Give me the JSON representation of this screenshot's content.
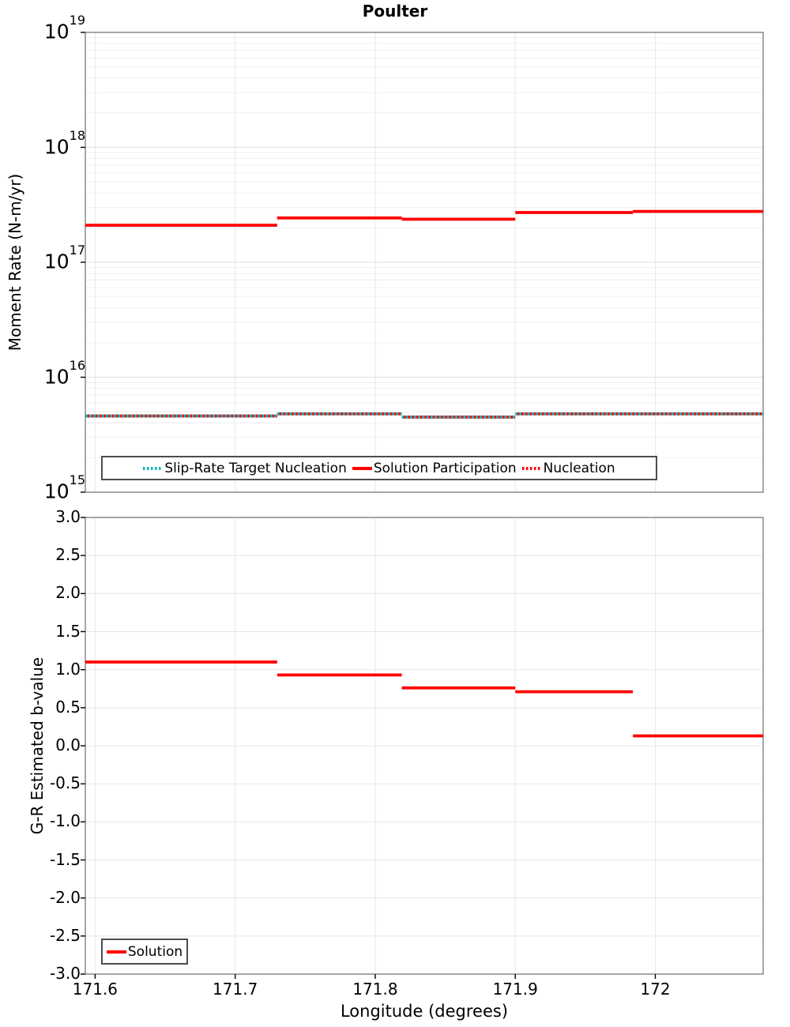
{
  "chart_data": [
    {
      "type": "line",
      "title": "Poulter",
      "ylabel": "Moment Rate (N-m/yr)",
      "xlabel": "",
      "yscale": "log",
      "ylim": [
        1000000000000000.0,
        1e+19
      ],
      "xlim": [
        171.593,
        172.077
      ],
      "grid": true,
      "legend_position": "lower left",
      "ytick_exponents": [
        19,
        18,
        17,
        16,
        15
      ],
      "xticks": [
        171.6,
        171.7,
        171.8,
        171.9,
        172.0
      ],
      "series": [
        {
          "name": "Slip-Rate Target Nucleation",
          "style": "dotted",
          "color": "#00b8be",
          "segments": [
            [
              171.593,
              171.73,
              4600000000000000.0
            ],
            [
              171.73,
              171.819,
              4800000000000000.0
            ],
            [
              171.819,
              171.9,
              4500000000000000.0
            ],
            [
              171.9,
              172.077,
              4800000000000000.0
            ]
          ]
        },
        {
          "name": "Solution Participation",
          "style": "solid",
          "color": "#ff0000",
          "segments": [
            [
              171.593,
              171.661,
              2.1e+17
            ],
            [
              171.661,
              171.73,
              2.1e+17
            ],
            [
              171.73,
              171.819,
              2.43e+17
            ],
            [
              171.819,
              171.9,
              2.37e+17
            ],
            [
              171.9,
              171.984,
              2.71e+17
            ],
            [
              171.984,
              172.077,
              2.77e+17
            ]
          ]
        },
        {
          "name": "Nucleation",
          "style": "dotted",
          "color": "#ff0000",
          "segments": [
            [
              171.593,
              171.73,
              4600000000000000.0
            ],
            [
              171.73,
              171.819,
              4800000000000000.0
            ],
            [
              171.819,
              171.9,
              4500000000000000.0
            ],
            [
              171.9,
              172.077,
              4800000000000000.0
            ]
          ]
        }
      ]
    },
    {
      "type": "line",
      "title": "",
      "ylabel": "G-R Estimated b-value",
      "xlabel": "Longitude (degrees)",
      "yscale": "linear",
      "ylim": [
        -3.0,
        3.0
      ],
      "xlim": [
        171.593,
        172.077
      ],
      "grid": true,
      "legend_position": "lower left",
      "yticks": [
        "3.0",
        "2.5",
        "2.0",
        "1.5",
        "1.0",
        "0.5",
        "0.0",
        "-0.5",
        "-1.0",
        "-1.5",
        "-2.0",
        "-2.5",
        "-3.0"
      ],
      "xticks": [
        171.6,
        171.7,
        171.8,
        171.9,
        172.0
      ],
      "xtick_labels": [
        "171.6",
        "171.7",
        "171.8",
        "171.9",
        "172"
      ],
      "series": [
        {
          "name": "Solution",
          "style": "solid",
          "color": "#ff0000",
          "segments": [
            [
              171.593,
              171.661,
              1.1
            ],
            [
              171.661,
              171.73,
              1.1
            ],
            [
              171.73,
              171.819,
              0.93
            ],
            [
              171.819,
              171.9,
              0.76
            ],
            [
              171.9,
              171.984,
              0.71
            ],
            [
              171.984,
              172.077,
              0.13
            ]
          ]
        }
      ]
    }
  ],
  "colors": {
    "solution": "#ff0000",
    "target": "#00b8be",
    "grid_minor": "#efefef",
    "grid_major": "#e2e2e2",
    "grid_vertical": "#e8e8e8",
    "plot_border": "#8a8a8a",
    "legend_border": "#4d4d4d",
    "text": "#000000"
  }
}
